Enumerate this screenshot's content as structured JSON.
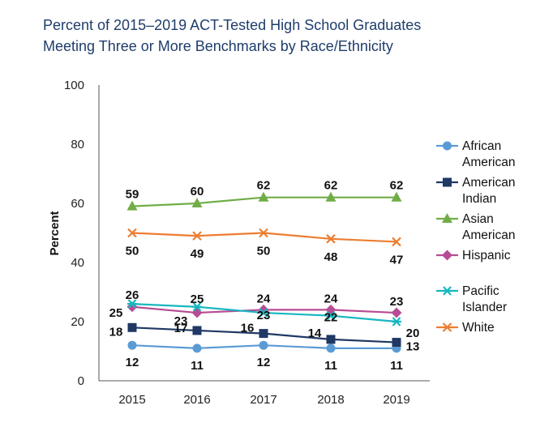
{
  "title": "Percent of 2015–2019 ACT-Tested High School Graduates",
  "subtitle": "Meeting Three or More Benchmarks by Race/Ethnicity",
  "chart_data": {
    "type": "line",
    "title": "Percent of 2015–2019 ACT-Tested High School Graduates",
    "subtitle": "Meeting Three or More Benchmarks by Race/Ethnicity",
    "xlabel": "",
    "ylabel": "Percent",
    "x": [
      "2015",
      "2016",
      "2017",
      "2018",
      "2019"
    ],
    "ylim": [
      0,
      100
    ],
    "yticks": [
      "0",
      "20",
      "40",
      "60",
      "80",
      "100"
    ],
    "grid": false,
    "legend": "right",
    "series": [
      {
        "name_lines": [
          "African",
          "American"
        ],
        "color": "#5b9bd5",
        "marker": "circle",
        "values": [
          12,
          11,
          12,
          11,
          11
        ]
      },
      {
        "name_lines": [
          "American",
          "Indian"
        ],
        "color": "#1f3864",
        "marker": "square",
        "values": [
          18,
          17,
          16,
          14,
          13
        ]
      },
      {
        "name_lines": [
          "Asian",
          "American"
        ],
        "color": "#70ad47",
        "marker": "triangle",
        "values": [
          59,
          60,
          62,
          62,
          62
        ]
      },
      {
        "name_lines": [
          "Hispanic"
        ],
        "color": "#b84c94",
        "marker": "diamond",
        "values": [
          25,
          23,
          24,
          24,
          23
        ]
      },
      {
        "name_lines": [
          "Pacific",
          "Islander"
        ],
        "color": "#17b7c1",
        "marker": "asterisk",
        "values": [
          26,
          25,
          23,
          22,
          20
        ]
      },
      {
        "name_lines": [
          "White"
        ],
        "color": "#ed7d31",
        "marker": "x",
        "values": [
          50,
          49,
          50,
          48,
          47
        ]
      }
    ]
  }
}
